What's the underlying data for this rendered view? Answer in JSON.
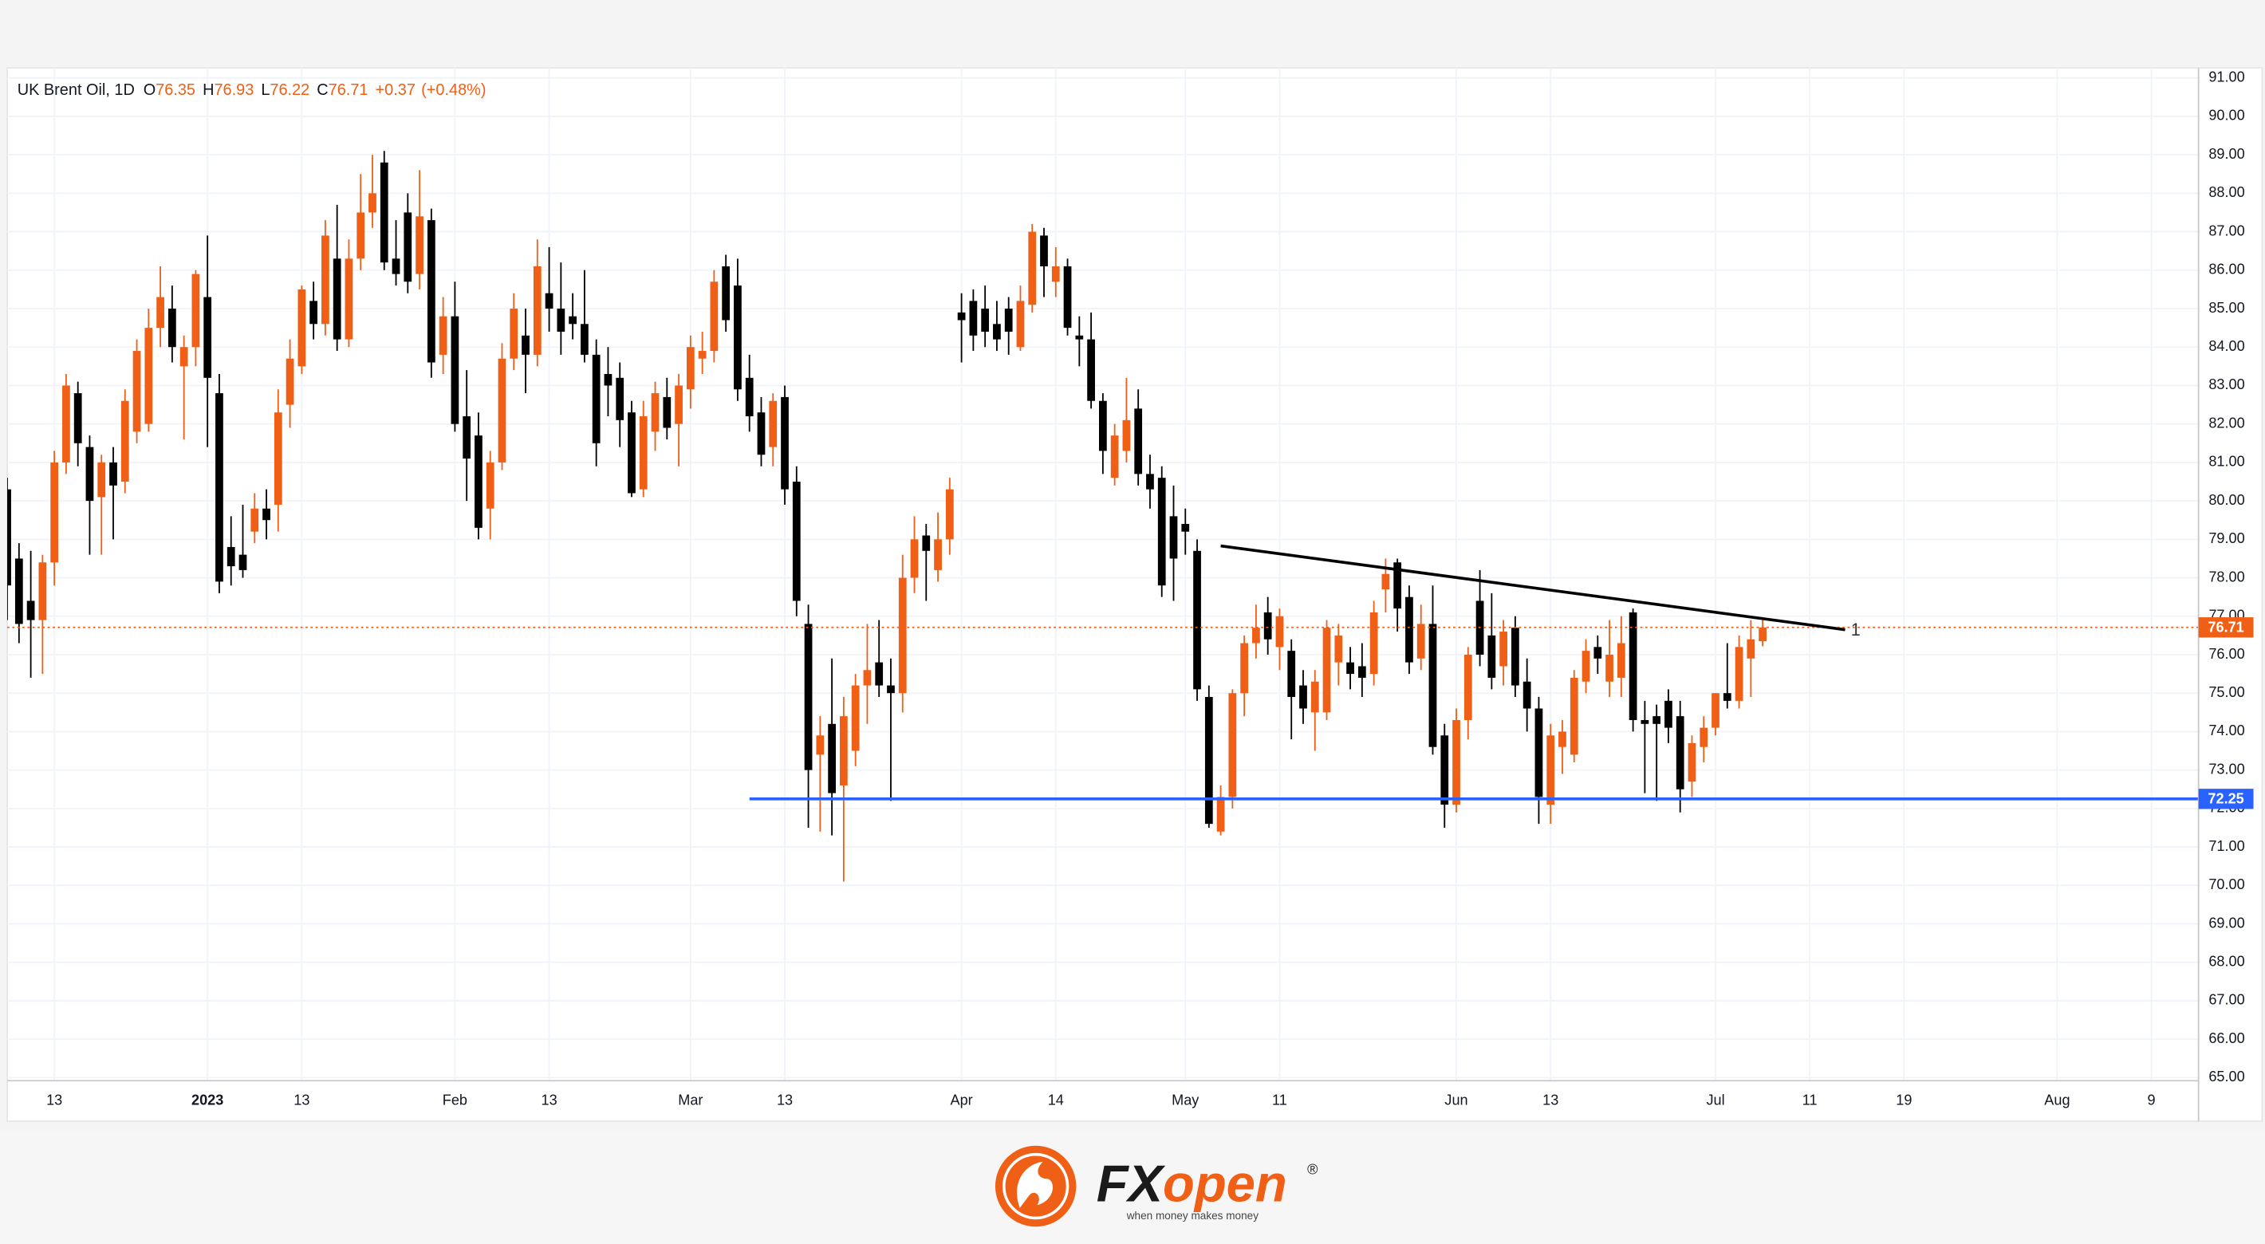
{
  "chart_data": {
    "type": "candlestick",
    "title": "UK Brent Oil, 1D",
    "legend": {
      "labels": [
        "O",
        "H",
        "L",
        "C"
      ],
      "values": [
        76.35,
        76.93,
        76.22,
        76.71
      ],
      "change": {
        "value": 0.37,
        "label": "+0.37"
      },
      "change_pct": {
        "value": 0.48,
        "label": "(+0.48%)"
      }
    },
    "up_color": "#ef5f16",
    "down_color": "#000000",
    "open": [
      80.3,
      78.5,
      77.4,
      76.9,
      78.4,
      81.0,
      82.8,
      81.4,
      80.1,
      81.0,
      80.5,
      81.8,
      82.0,
      84.5,
      85.0,
      83.5,
      84.0,
      85.3,
      82.8,
      78.8,
      78.6,
      79.2,
      79.8,
      79.9,
      82.5,
      83.5,
      85.2,
      84.6,
      86.3,
      84.2,
      86.3,
      87.5,
      88.8,
      86.3,
      87.5,
      85.9,
      87.3,
      83.8,
      84.8,
      82.2,
      81.7,
      79.8,
      81.0,
      83.7,
      84.3,
      83.8,
      85.4,
      85.0,
      84.8,
      84.6,
      83.8,
      83.3,
      83.2,
      82.3,
      80.3,
      81.8,
      82.7,
      82.0,
      82.9,
      83.7,
      83.9,
      86.1,
      85.6,
      83.2,
      82.3,
      81.4,
      82.7,
      80.5,
      76.8,
      73.4,
      74.2,
      72.6,
      73.5,
      75.2,
      75.8,
      75.2,
      75.0,
      78.0,
      79.1,
      78.2,
      79.0,
      84.9,
      85.2,
      85.0,
      84.6,
      85.0,
      84.0,
      85.1,
      86.9,
      85.7,
      86.1,
      84.3,
      84.2,
      82.6,
      80.6,
      81.3,
      82.4,
      80.7,
      80.6,
      79.6,
      79.4,
      78.7,
      74.9,
      71.4,
      72.3,
      75.0,
      76.3,
      77.1,
      76.2,
      76.1,
      75.2,
      74.5,
      74.5,
      75.8,
      75.8,
      75.7,
      75.5,
      77.7,
      78.4,
      77.5,
      75.9,
      76.8,
      73.9,
      72.1,
      74.3,
      77.4,
      76.5,
      75.7,
      76.7,
      75.3,
      74.6,
      72.1,
      73.6,
      73.4,
      75.3,
      76.2,
      75.3,
      75.4,
      77.1,
      74.3,
      74.4,
      74.8,
      74.4,
      72.7,
      73.6,
      74.1,
      75.0,
      74.8,
      75.9,
      76.35
    ],
    "high": [
      80.6,
      78.9,
      78.7,
      78.6,
      81.3,
      83.3,
      83.1,
      81.7,
      81.2,
      81.4,
      82.9,
      84.2,
      85.0,
      86.1,
      85.6,
      84.3,
      86.0,
      86.9,
      83.3,
      79.6,
      79.9,
      80.2,
      80.3,
      82.9,
      84.2,
      85.6,
      85.7,
      87.3,
      87.7,
      86.8,
      88.5,
      89.0,
      89.1,
      87.3,
      88.0,
      88.6,
      87.6,
      85.3,
      85.7,
      83.4,
      82.3,
      81.3,
      84.1,
      85.4,
      85.0,
      86.8,
      86.6,
      86.2,
      85.4,
      86.0,
      84.2,
      84.0,
      83.6,
      82.6,
      82.6,
      83.1,
      83.2,
      83.3,
      84.3,
      84.4,
      86.0,
      86.4,
      86.3,
      83.8,
      82.7,
      82.8,
      83.0,
      80.9,
      77.3,
      74.4,
      75.9,
      74.9,
      75.5,
      76.8,
      76.9,
      75.9,
      78.6,
      79.6,
      79.4,
      79.7,
      80.6,
      85.4,
      85.5,
      85.6,
      85.2,
      85.3,
      85.6,
      87.2,
      87.1,
      86.6,
      86.3,
      84.8,
      84.9,
      82.8,
      82.0,
      83.2,
      82.9,
      81.2,
      80.9,
      80.4,
      79.8,
      79.0,
      75.2,
      72.6,
      75.1,
      76.5,
      77.3,
      77.5,
      77.2,
      76.4,
      75.6,
      75.6,
      76.9,
      76.8,
      76.2,
      76.3,
      77.4,
      78.5,
      78.5,
      77.8,
      77.3,
      77.8,
      74.2,
      74.6,
      76.2,
      78.2,
      77.6,
      76.9,
      77.0,
      75.9,
      74.9,
      74.2,
      74.3,
      75.6,
      76.4,
      76.5,
      76.9,
      77.0,
      77.2,
      74.8,
      74.7,
      75.1,
      74.8,
      73.9,
      74.4,
      75.0,
      76.3,
      76.5,
      76.9,
      76.93
    ],
    "low": [
      76.9,
      76.3,
      75.4,
      75.5,
      77.8,
      80.7,
      80.9,
      78.6,
      78.6,
      79.0,
      80.2,
      81.5,
      81.8,
      84.0,
      83.6,
      81.6,
      83.5,
      81.4,
      77.6,
      77.8,
      78.0,
      78.9,
      79.0,
      79.2,
      81.9,
      83.3,
      84.2,
      84.3,
      83.9,
      84.0,
      86.0,
      87.1,
      86.0,
      85.6,
      85.4,
      85.5,
      83.2,
      83.3,
      81.8,
      80.0,
      79.0,
      79.0,
      80.8,
      83.4,
      82.8,
      83.5,
      84.4,
      83.8,
      84.2,
      83.6,
      80.9,
      82.2,
      81.4,
      80.1,
      80.1,
      81.3,
      81.6,
      80.9,
      82.4,
      83.3,
      83.6,
      84.4,
      82.6,
      81.8,
      80.9,
      80.9,
      79.9,
      77.0,
      71.5,
      71.4,
      71.3,
      70.1,
      73.1,
      74.2,
      74.9,
      72.2,
      74.5,
      77.6,
      77.4,
      77.9,
      78.6,
      83.6,
      83.9,
      84.0,
      83.9,
      83.8,
      83.9,
      84.9,
      85.3,
      85.3,
      84.3,
      83.5,
      82.4,
      80.7,
      80.4,
      81.0,
      80.4,
      79.8,
      77.5,
      77.4,
      78.6,
      74.8,
      71.5,
      71.3,
      72.0,
      74.4,
      75.9,
      76.0,
      75.6,
      73.8,
      74.2,
      73.5,
      74.3,
      75.2,
      75.1,
      74.9,
      75.2,
      77.1,
      76.6,
      75.5,
      75.6,
      73.4,
      71.5,
      71.9,
      73.8,
      75.7,
      75.1,
      75.2,
      74.9,
      74.0,
      71.6,
      71.6,
      72.9,
      73.2,
      75.0,
      75.5,
      74.9,
      74.9,
      74.0,
      72.4,
      72.2,
      73.7,
      71.9,
      72.3,
      73.2,
      73.9,
      74.6,
      74.6,
      74.9,
      76.22
    ],
    "close": [
      77.8,
      76.8,
      76.9,
      78.4,
      81.0,
      83.0,
      81.5,
      80.0,
      81.0,
      80.4,
      82.6,
      83.9,
      84.5,
      85.3,
      84.0,
      84.0,
      85.9,
      83.2,
      77.9,
      78.3,
      78.2,
      79.8,
      79.5,
      82.3,
      83.7,
      85.5,
      84.6,
      86.9,
      84.2,
      86.3,
      87.5,
      88.0,
      86.2,
      85.9,
      85.7,
      87.4,
      83.6,
      84.8,
      82.0,
      81.1,
      79.3,
      81.0,
      83.7,
      85.0,
      83.8,
      86.1,
      85.0,
      84.4,
      84.6,
      83.8,
      81.5,
      83.0,
      82.1,
      80.2,
      82.2,
      82.8,
      81.9,
      83.0,
      84.0,
      83.9,
      85.7,
      84.7,
      82.9,
      82.2,
      81.2,
      82.6,
      80.3,
      77.4,
      73.0,
      73.9,
      72.4,
      74.4,
      75.2,
      75.6,
      75.2,
      75.0,
      78.0,
      79.0,
      78.7,
      79.0,
      80.3,
      84.7,
      84.3,
      84.4,
      84.2,
      84.4,
      85.2,
      87.0,
      86.1,
      86.1,
      84.5,
      84.2,
      82.6,
      81.3,
      81.7,
      82.1,
      80.7,
      80.3,
      77.8,
      78.5,
      79.2,
      75.1,
      71.6,
      72.3,
      75.0,
      76.3,
      76.7,
      76.4,
      77.0,
      74.9,
      74.6,
      75.3,
      76.7,
      76.5,
      75.5,
      75.4,
      77.1,
      78.1,
      77.2,
      75.8,
      76.8,
      73.6,
      72.1,
      74.3,
      76.0,
      76.0,
      75.4,
      76.6,
      75.2,
      74.6,
      72.3,
      73.9,
      74.0,
      75.4,
      76.1,
      75.9,
      76.0,
      76.3,
      74.3,
      74.2,
      74.2,
      74.1,
      72.5,
      73.7,
      74.1,
      75.0,
      74.8,
      76.2,
      76.4,
      76.71
    ],
    "xlim": [
      0,
      186
    ],
    "xticks": [
      {
        "value": 4,
        "label": "13"
      },
      {
        "value": 17,
        "label": "2023"
      },
      {
        "value": 25,
        "label": "13"
      },
      {
        "value": 38,
        "label": "Feb"
      },
      {
        "value": 46,
        "label": "13"
      },
      {
        "value": 58,
        "label": "Mar"
      },
      {
        "value": 66,
        "label": "13"
      },
      {
        "value": 81,
        "label": "Apr"
      },
      {
        "value": 89,
        "label": "14"
      },
      {
        "value": 100,
        "label": "May"
      },
      {
        "value": 108,
        "label": "11"
      },
      {
        "value": 123,
        "label": "Jun"
      },
      {
        "value": 131,
        "label": "13"
      },
      {
        "value": 145,
        "label": "Jul"
      },
      {
        "value": 153,
        "label": "11"
      },
      {
        "value": 161,
        "label": "19"
      },
      {
        "value": 174,
        "label": "Aug"
      },
      {
        "value": 182,
        "label": "9"
      }
    ],
    "ylim": [
      64.92,
      91.26
    ],
    "yticks": [
      {
        "value": 65,
        "label": "65.00"
      },
      {
        "value": 66,
        "label": "66.00"
      },
      {
        "value": 67,
        "label": "67.00"
      },
      {
        "value": 68,
        "label": "68.00"
      },
      {
        "value": 69,
        "label": "69.00"
      },
      {
        "value": 70,
        "label": "70.00"
      },
      {
        "value": 71,
        "label": "71.00"
      },
      {
        "value": 72,
        "label": "72.00"
      },
      {
        "value": 73,
        "label": "73.00"
      },
      {
        "value": 74,
        "label": "74.00"
      },
      {
        "value": 75,
        "label": "75.00"
      },
      {
        "value": 76,
        "label": "76.00"
      },
      {
        "value": 77,
        "label": "77.00"
      },
      {
        "value": 78,
        "label": "78.00"
      },
      {
        "value": 79,
        "label": "79.00"
      },
      {
        "value": 80,
        "label": "80.00"
      },
      {
        "value": 81,
        "label": "81.00"
      },
      {
        "value": 82,
        "label": "82.00"
      },
      {
        "value": 83,
        "label": "83.00"
      },
      {
        "value": 84,
        "label": "84.00"
      },
      {
        "value": 85,
        "label": "85.00"
      },
      {
        "value": 86,
        "label": "86.00"
      },
      {
        "value": 87,
        "label": "87.00"
      },
      {
        "value": 88,
        "label": "88.00"
      },
      {
        "value": 89,
        "label": "89.00"
      },
      {
        "value": 90,
        "label": "90.00"
      },
      {
        "value": 91,
        "label": "91.00"
      }
    ],
    "grid": true,
    "price_lines": [
      {
        "value": 76.71,
        "color": "#ef5f16",
        "dashed": true
      },
      {
        "value": 72.25,
        "color": "#2962ff",
        "dashed": false,
        "start": 63
      }
    ],
    "trendline": {
      "x": [
        103,
        156
      ],
      "y": [
        78.83,
        76.65
      ],
      "label": "1",
      "color": "#000000"
    }
  },
  "footer": {
    "fx": "FX",
    "open": "open",
    "reg": "®",
    "tagline": "when money makes money"
  }
}
